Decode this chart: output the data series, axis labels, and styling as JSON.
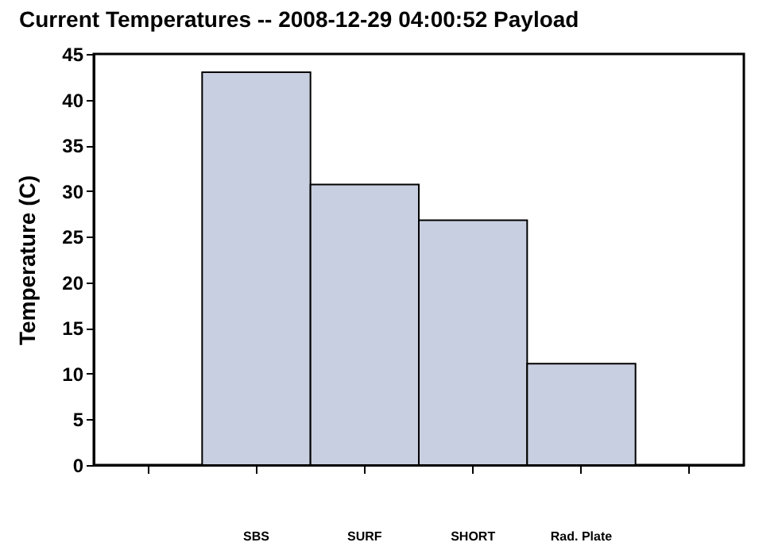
{
  "chart_data": {
    "type": "bar",
    "title": "Current Temperatures -- 2008-12-29 04:00:52 Payload",
    "ylabel": "Temperature (C)",
    "categories": [
      null,
      "SBS",
      "SURF",
      "SHORT",
      "Rad. Plate",
      null
    ],
    "values": [
      null,
      43.0,
      30.7,
      26.8,
      11.1,
      null
    ],
    "color": "#c8cfe0",
    "ylim": [
      0,
      45
    ],
    "yticks": [
      0,
      5,
      10,
      15,
      20,
      25,
      30,
      35,
      40,
      45
    ],
    "grid": false
  }
}
